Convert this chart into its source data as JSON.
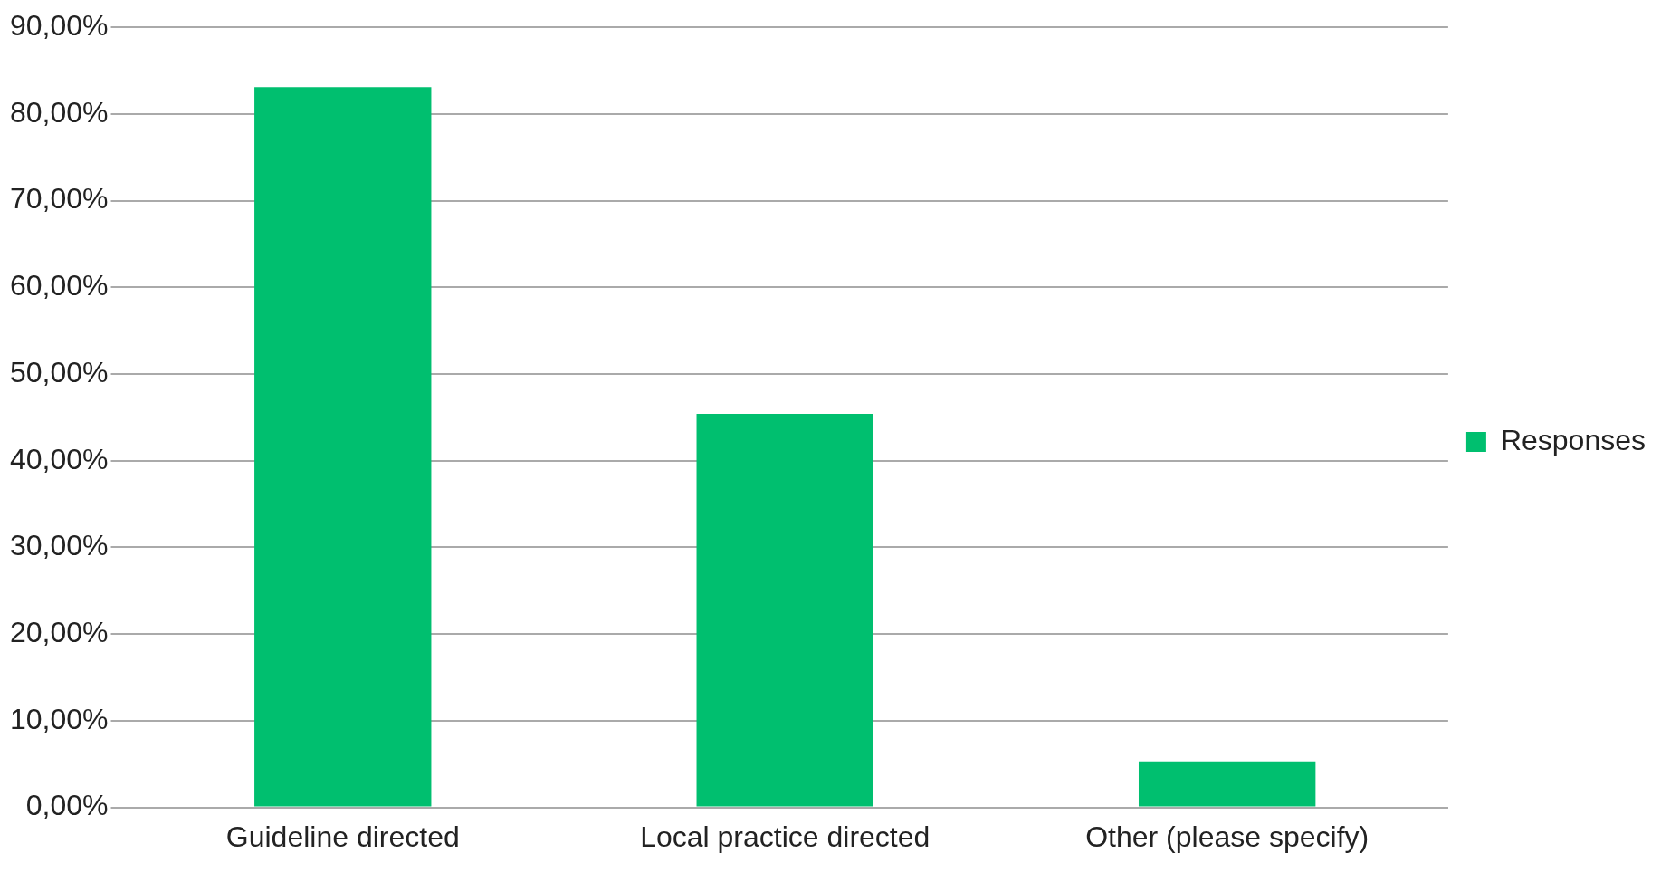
{
  "chart_data": {
    "type": "bar",
    "categories": [
      "Guideline directed",
      "Local practice directed",
      "Other (please specify)"
    ],
    "series": [
      {
        "name": "Responses",
        "color": "#00bf6f",
        "values": [
          83.1,
          45.4,
          5.3
        ]
      }
    ],
    "ylim": [
      0,
      90
    ],
    "yticks": [
      {
        "value": 0,
        "label": "0,00%"
      },
      {
        "value": 10,
        "label": "10,00%"
      },
      {
        "value": 20,
        "label": "20,00%"
      },
      {
        "value": 30,
        "label": "30,00%"
      },
      {
        "value": 40,
        "label": "40,00%"
      },
      {
        "value": 50,
        "label": "50,00%"
      },
      {
        "value": 60,
        "label": "60,00%"
      },
      {
        "value": 70,
        "label": "70,00%"
      },
      {
        "value": 80,
        "label": "80,00%"
      },
      {
        "value": 90,
        "label": "90,00%"
      }
    ],
    "grid": "y",
    "legend": "right"
  }
}
